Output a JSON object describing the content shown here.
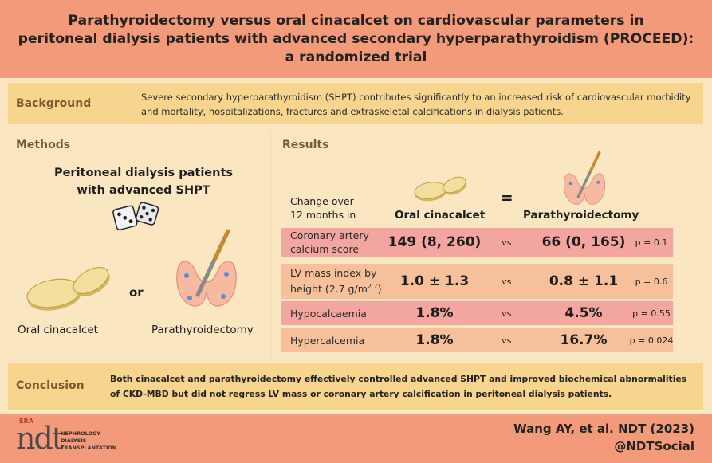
{
  "title": "Parathyroidectomy versus oral cinacalcet on cardiovascular parameters in\nperitoneal dialysis patients with advanced secondary hyperparathyroidism (PROCEED):\na randomized trial",
  "background": {
    "label": "Background",
    "text": "Severe secondary hyperparathyroidism (SHPT) contributes significantly to an increased risk of cardiovascular morbidity and mortality, hospitalizations, fractures and extraskeletal calcifications in dialysis patients."
  },
  "methods": {
    "label": "Methods",
    "title": "Peritoneal dialysis patients\nwith advanced SHPT",
    "or": "or",
    "arm1": "Oral cinacalcet",
    "arm2": "Parathyroidectomy"
  },
  "results": {
    "label": "Results",
    "change_label_1": "Change over",
    "change_label_2": "12 months in",
    "equals": "=",
    "col1": "Oral cinacalcet",
    "col2": "Parathyroidectomy",
    "rows": [
      {
        "label1": "Coronary artery",
        "label2": "calcium score",
        "v1": "149 (8, 260)",
        "vs": "vs.",
        "v2": "66 (0, 165)",
        "p": "p = 0.1"
      },
      {
        "label1": "LV mass index by",
        "label2": "height (2.7 g/m",
        "label2_sup": "2.7",
        "label2_end": ")",
        "v1": "1.0 ± 1.3",
        "vs": "vs.",
        "v2": "0.8 ± 1.1",
        "p": "p = 0.6"
      },
      {
        "label1": "Hypocalcaemia",
        "v1": "1.8%",
        "vs": "vs.",
        "v2": "4.5%",
        "p": "p = 0.55"
      },
      {
        "label1": "Hypercalcemia",
        "v1": "1.8%",
        "vs": "vs.",
        "v2": "16.7%",
        "p": "p = 0.024"
      }
    ],
    "row_colors": [
      "#f3a5a0",
      "#f5c09a",
      "#f3a5a0",
      "#f5c09a"
    ]
  },
  "conclusion": {
    "label": "Conclusion",
    "text": "Both cinacalcet and parathyroidectomy effectively controlled advanced SHPT and improved biochemical abnormalities of CKD-MBD but did not regress LV mass or coronary artery calcification in peritoneal dialysis patients."
  },
  "footer": {
    "logo_era": "ERA",
    "logo_ndt": "ndt",
    "logo_line1": "NEPHROLOGY",
    "logo_line2": "DIALYSIS",
    "logo_line3": "TRANSPLANTATION",
    "citation": "Wang AY, et al. NDT (2023)",
    "handle": "@NDTSocial"
  },
  "colors": {
    "accent": "#f39a7a",
    "band": "#f8d58e",
    "panel": "#fbe6c2"
  }
}
